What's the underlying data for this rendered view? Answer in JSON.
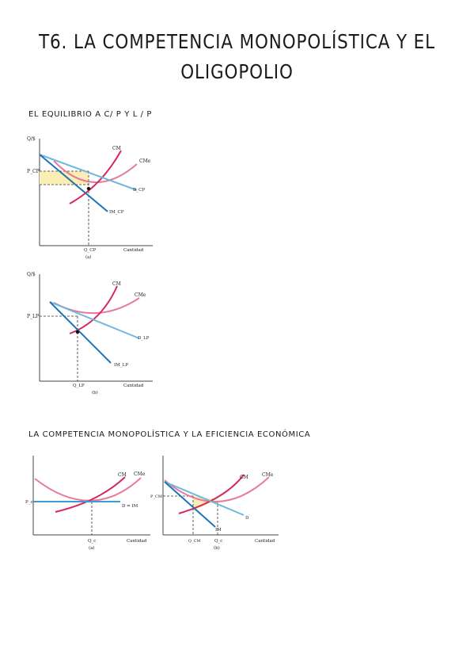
{
  "title": {
    "line1": "T6. LA COMPETENCIA MONOPOLÍSTICA Y EL",
    "line2": "OLIGOPOLIO"
  },
  "section1": {
    "heading": "EL EQUILIBRIO A C/ P Y L / P",
    "figure_a": {
      "y_axis": "Q/$",
      "x_axis": "Cantidad",
      "price_label": "P_CP",
      "qty_label": "Q_CP",
      "panel": "(a)",
      "curve_cm": "CM",
      "curve_cme": "CMe",
      "curve_d": "D_CP",
      "curve_im": "IM_CP"
    },
    "figure_b": {
      "y_axis": "Q/$",
      "x_axis": "Cantidad",
      "price_label": "P_LP",
      "qty_label": "Q_LP",
      "panel": "(b)",
      "curve_cm": "CM",
      "curve_cme": "CMe",
      "curve_d": "D_LP",
      "curve_im": "IM_LP"
    }
  },
  "section2": {
    "heading": "LA COMPETENCIA MONOPOLÍSTICA Y LA EFICIENCIA ECONÓMICA",
    "figure_a": {
      "price_label": "P_c",
      "qty_label": "Q_c",
      "x_axis": "Cantidad",
      "panel": "(a)",
      "curve_cm": "CM",
      "curve_cme": "CMe",
      "curve_d": "D = IM"
    },
    "figure_b": {
      "price_label": "P_CM",
      "qty_label1": "Q_CM",
      "qty_label2": "Q_c",
      "x_axis": "Cantidad",
      "panel": "(b)",
      "curve_cm": "CM",
      "curve_cme": "CMe",
      "curve_d": "D",
      "curve_im": "IM"
    }
  },
  "colors": {
    "cm_curve": "#d6285a",
    "cme_curve": "#e87a9a",
    "demand": "#6fb7dd",
    "marginal_revenue": "#1f73b5",
    "profit_area": "#fbeeb4"
  }
}
